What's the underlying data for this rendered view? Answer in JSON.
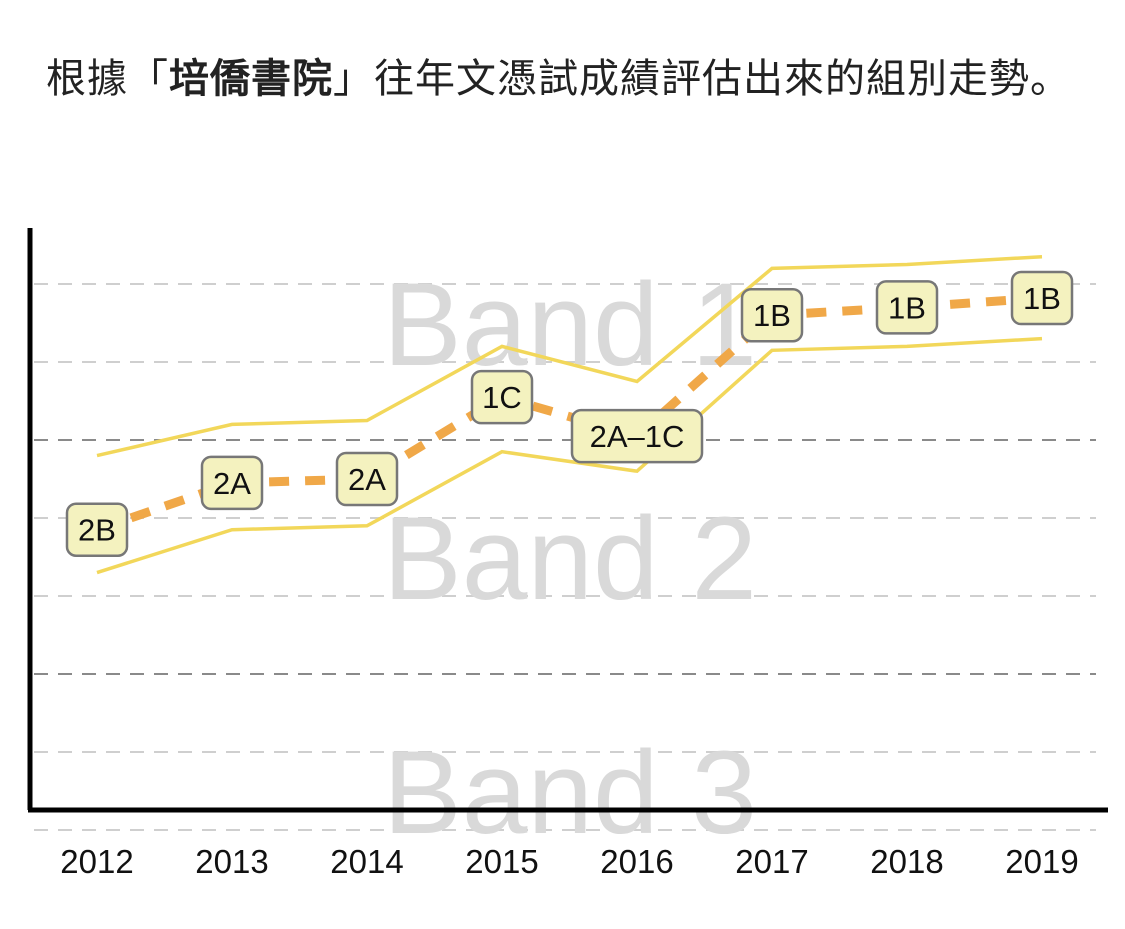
{
  "heading": {
    "prefix": "根據「",
    "school": "培僑書院",
    "suffix": "」往年文憑試成績評估出來的組別走勢。"
  },
  "chart_data": {
    "type": "line",
    "x": [
      "2012",
      "2013",
      "2014",
      "2015",
      "2016",
      "2017",
      "2018",
      "2019"
    ],
    "series": [
      {
        "role": "estimate",
        "labels": [
          "2B",
          "2A",
          "2A",
          "1C",
          "2A–1C",
          "1B",
          "1B",
          "1B"
        ],
        "values": [
          4.85,
          5.45,
          5.5,
          6.55,
          6.05,
          7.6,
          7.7,
          7.82
        ]
      },
      {
        "role": "upper",
        "values": [
          5.8,
          6.2,
          6.25,
          7.2,
          6.75,
          8.2,
          8.25,
          8.35
        ]
      },
      {
        "role": "lower",
        "values": [
          4.3,
          4.85,
          4.9,
          5.85,
          5.6,
          7.15,
          7.2,
          7.3
        ]
      }
    ],
    "bands": [
      {
        "label": "Band 1",
        "ymin": 6,
        "ymax": 9
      },
      {
        "label": "Band 2",
        "ymin": 3,
        "ymax": 6
      },
      {
        "label": "Band 3",
        "ymin": 0,
        "ymax": 3
      }
    ],
    "ylim": [
      0,
      9
    ],
    "grid": [
      1,
      2,
      3,
      4,
      5,
      6,
      7,
      8
    ],
    "colors": {
      "estimate": "#f0a848",
      "range": "#f2d75a",
      "label_fill": "#f4f2bf",
      "label_border": "#777777",
      "band_text": "#d9d9d9"
    }
  }
}
